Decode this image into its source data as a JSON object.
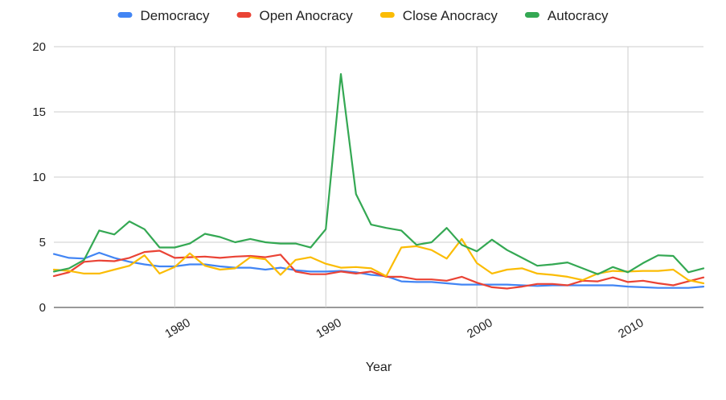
{
  "chart_data": {
    "type": "line",
    "title": "",
    "xlabel": "Year",
    "ylabel": "",
    "xlim": [
      1972,
      2015
    ],
    "ylim": [
      0,
      20
    ],
    "yticks": [
      0,
      5,
      10,
      15,
      20
    ],
    "xticks": [
      1980,
      1990,
      2000,
      2010
    ],
    "grid": true,
    "legend_position": "top",
    "x": [
      1972,
      1973,
      1974,
      1975,
      1976,
      1977,
      1978,
      1979,
      1980,
      1981,
      1982,
      1983,
      1984,
      1985,
      1986,
      1987,
      1988,
      1989,
      1990,
      1991,
      1992,
      1993,
      1994,
      1995,
      1996,
      1997,
      1998,
      1999,
      2000,
      2001,
      2002,
      2003,
      2004,
      2005,
      2006,
      2007,
      2008,
      2009,
      2010,
      2011,
      2012,
      2013,
      2014,
      2015
    ],
    "series": [
      {
        "name": "Democracy",
        "color": "#4285F4",
        "values": [
          4.1,
          3.8,
          3.75,
          4.2,
          3.8,
          3.5,
          3.3,
          3.15,
          3.15,
          3.3,
          3.3,
          3.15,
          3.05,
          3.05,
          2.9,
          3.05,
          2.85,
          2.75,
          2.75,
          2.8,
          2.7,
          2.5,
          2.4,
          2.0,
          1.95,
          1.95,
          1.85,
          1.75,
          1.75,
          1.75,
          1.75,
          1.7,
          1.65,
          1.7,
          1.7,
          1.7,
          1.7,
          1.7,
          1.6,
          1.55,
          1.5,
          1.5,
          1.5,
          1.6
        ]
      },
      {
        "name": "Open Anocracy",
        "color": "#EA4335",
        "values": [
          2.4,
          2.7,
          3.5,
          3.6,
          3.55,
          3.8,
          4.25,
          4.35,
          3.8,
          3.85,
          3.9,
          3.8,
          3.9,
          3.95,
          3.85,
          4.05,
          2.75,
          2.55,
          2.55,
          2.75,
          2.6,
          2.75,
          2.35,
          2.35,
          2.15,
          2.15,
          2.05,
          2.35,
          1.9,
          1.55,
          1.45,
          1.6,
          1.8,
          1.8,
          1.7,
          2.05,
          2.0,
          2.3,
          1.95,
          2.05,
          1.85,
          1.7,
          2.0,
          2.3
        ]
      },
      {
        "name": "Close Anocracy",
        "color": "#FBBC04",
        "values": [
          2.9,
          2.8,
          2.6,
          2.6,
          2.9,
          3.2,
          4.0,
          2.6,
          3.1,
          4.15,
          3.2,
          2.9,
          3.0,
          3.85,
          3.7,
          2.5,
          3.65,
          3.85,
          3.35,
          3.05,
          3.1,
          3.0,
          2.4,
          4.6,
          4.7,
          4.4,
          3.75,
          5.25,
          3.4,
          2.6,
          2.9,
          3.0,
          2.6,
          2.5,
          2.35,
          2.1,
          2.6,
          2.8,
          2.75,
          2.8,
          2.8,
          2.9,
          2.1,
          1.85
        ]
      },
      {
        "name": "Autocracy",
        "color": "#34A853",
        "values": [
          2.75,
          3.0,
          3.65,
          5.9,
          5.6,
          6.6,
          6.0,
          4.6,
          4.6,
          4.9,
          5.65,
          5.4,
          5.0,
          5.25,
          5.0,
          4.9,
          4.9,
          4.6,
          6.0,
          17.9,
          8.7,
          6.35,
          6.1,
          5.9,
          4.8,
          5.0,
          6.1,
          4.8,
          4.3,
          5.2,
          4.4,
          3.8,
          3.2,
          3.3,
          3.45,
          3.0,
          2.55,
          3.1,
          2.7,
          3.4,
          4.0,
          3.95,
          2.7,
          3.0
        ]
      }
    ]
  }
}
